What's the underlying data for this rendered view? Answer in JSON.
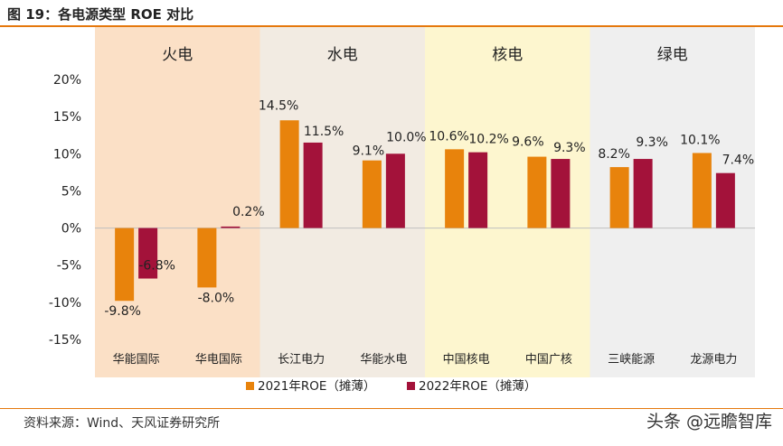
{
  "title": "图 19：各电源类型 ROE 对比",
  "source": "资料来源：Wind、天风证券研究所",
  "watermark": "头条 @远瞻智库",
  "colors": {
    "series_2021": "#e8830c",
    "series_2022": "#a3123a",
    "band_thermal": "#fbe0c6",
    "band_hydro": "#f2ebe2",
    "band_nuclear": "#fdf6cf",
    "band_green": "#efefef",
    "accent": "#e5780c"
  },
  "chart_data": {
    "type": "bar",
    "groups": [
      {
        "label": "火电",
        "categories": [
          "华能国际",
          "华电国际"
        ]
      },
      {
        "label": "水电",
        "categories": [
          "长江电力",
          "华能水电"
        ]
      },
      {
        "label": "核电",
        "categories": [
          "中国核电",
          "中国广核"
        ]
      },
      {
        "label": "绿电",
        "categories": [
          "三峡能源",
          "龙源电力"
        ]
      }
    ],
    "categories": [
      "华能国际",
      "华电国际",
      "长江电力",
      "华能水电",
      "中国核电",
      "中国广核",
      "三峡能源",
      "龙源电力"
    ],
    "series": [
      {
        "name": "2021年ROE（摊薄）",
        "values": [
          -9.8,
          -8.0,
          14.5,
          9.1,
          10.6,
          9.6,
          8.2,
          10.1
        ],
        "labels": [
          "-9.8%",
          "-8.0%",
          "14.5%",
          "9.1%",
          "10.6%",
          "9.6%",
          "8.2%",
          "10.1%"
        ]
      },
      {
        "name": "2022年ROE（摊薄）",
        "values": [
          -6.8,
          0.2,
          11.5,
          10.0,
          10.2,
          9.3,
          9.3,
          7.4
        ],
        "labels": [
          "-6.8%",
          "0.2%",
          "11.5%",
          "10.0%",
          "10.2%",
          "9.3%",
          "9.3%",
          "7.4%"
        ]
      }
    ],
    "yticks": [
      "20%",
      "15%",
      "10%",
      "5%",
      "0%",
      "-5%",
      "-10%",
      "-15%"
    ],
    "ylim": [
      -15,
      20
    ],
    "legend_position": "bottom"
  }
}
